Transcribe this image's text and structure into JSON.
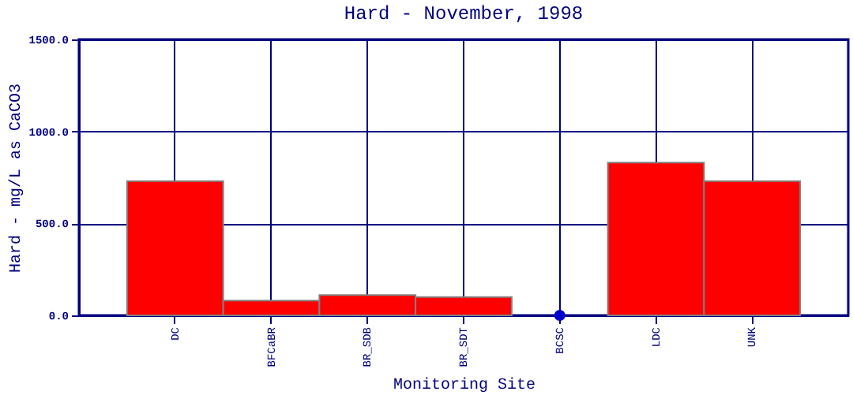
{
  "chart_data": {
    "type": "bar",
    "title": "Hard - November, 1998",
    "xlabel": "Monitoring Site",
    "ylabel": "Hard - mg/L as CaCO3",
    "categories": [
      "DC",
      "BFCaBR",
      "BR_SDB",
      "BR_SDT",
      "BCSC",
      "LDC",
      "UNK"
    ],
    "series": [
      {
        "color": "#ff0000",
        "values": [
          730,
          80,
          110,
          100,
          null,
          830,
          730
        ]
      },
      {
        "type": "scatter",
        "color": "#0000cc",
        "x": [
          "BCSC"
        ],
        "values": [
          0
        ],
        "marker": "circle"
      }
    ],
    "ylim": [
      0,
      1500
    ],
    "yticks": [
      {
        "value": 0,
        "label": "0.0"
      },
      {
        "value": 500,
        "label": "500.0"
      },
      {
        "value": 1000,
        "label": "1000.0"
      },
      {
        "value": 1500,
        "label": "1500.0"
      }
    ],
    "grid": true
  }
}
